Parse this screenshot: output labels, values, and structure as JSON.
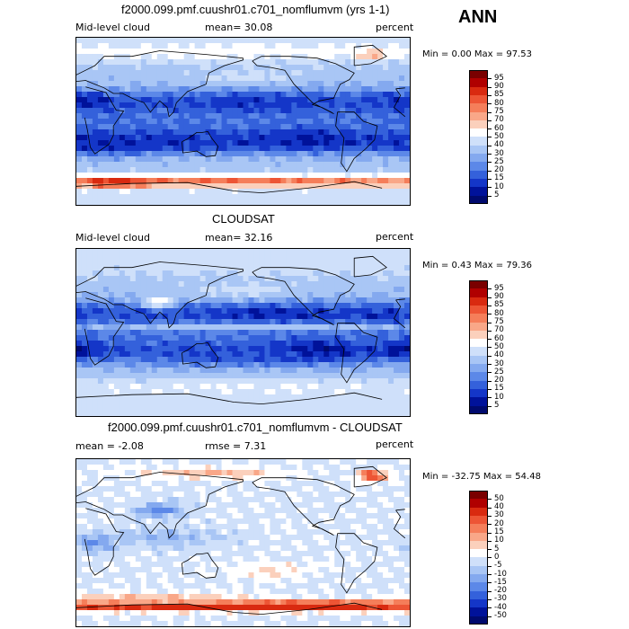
{
  "season": "ANN",
  "panels": [
    {
      "id": "model",
      "title": "f2000.099.pmf.cuushr01.c701_nomflumvm (yrs 1-1)",
      "left_label": "Mid-level cloud",
      "center_label": "mean=  30.08",
      "right_label": "percent",
      "minmax": "Min =    0.00 Max =   97.53",
      "colorbar_labels": [
        "95",
        "90",
        "85",
        "80",
        "75",
        "70",
        "60",
        "50",
        "40",
        "30",
        "25",
        "20",
        "15",
        "10",
        "5"
      ]
    },
    {
      "id": "obs",
      "title": "CLOUDSAT",
      "left_label": "Mid-level cloud",
      "center_label": "mean=  32.16",
      "right_label": "percent",
      "minmax": "Min =    0.43 Max =   79.36",
      "colorbar_labels": [
        "95",
        "90",
        "85",
        "80",
        "75",
        "70",
        "60",
        "50",
        "40",
        "30",
        "25",
        "20",
        "15",
        "10",
        "5"
      ]
    },
    {
      "id": "diff",
      "title": "f2000.099.pmf.cuushr01.c701_nomflumvm - CLOUDSAT",
      "left_label": "mean =  -2.08",
      "center_label": "rmse =   7.31",
      "right_label": "percent",
      "minmax": "Min = -32.75 Max =  54.48",
      "colorbar_labels": [
        "50",
        "40",
        "30",
        "20",
        "15",
        "10",
        "5",
        "0",
        "-5",
        "-10",
        "-15",
        "-20",
        "-30",
        "-40",
        "-50"
      ]
    }
  ],
  "colors": {
    "seq": [
      "#7a0000",
      "#b00000",
      "#d92a10",
      "#ed5535",
      "#f57e5a",
      "#f9a788",
      "#fbd0bc",
      "#ffffff",
      "#cfe0fa",
      "#a9c6f5",
      "#84a9ef",
      "#5c88e8",
      "#3461db",
      "#1436c8",
      "#00129a",
      "#000a6e"
    ],
    "coast": "#000000"
  },
  "chart_data": [
    {
      "type": "heatmap",
      "title": "f2000.099.pmf.cuushr01.c701_nomflumvm (yrs 1-1)",
      "subtitle": "Mid-level cloud",
      "units": "percent",
      "mean": 30.08,
      "min": 0.0,
      "max": 97.53,
      "contour_levels": [
        5,
        10,
        15,
        20,
        25,
        30,
        40,
        50,
        60,
        70,
        75,
        80,
        85,
        90,
        95
      ],
      "x_range": [
        0,
        360
      ],
      "y_range": [
        -90,
        90
      ],
      "fields": [
        {
          "desc": "southern ocean storm track band",
          "lat": -65,
          "lon": 180,
          "value": 80,
          "latw": 7,
          "lonw": 400
        },
        {
          "desc": "southern ocean west",
          "lat": -66,
          "lon": 40,
          "value": 90,
          "latw": 5,
          "lonw": 40
        },
        {
          "desc": "subtropical low clouds SE Pacific",
          "lat": -20,
          "lon": 250,
          "value": 5,
          "latw": 9,
          "lonw": 50
        },
        {
          "desc": "southern subtropics",
          "lat": -22,
          "lon": 150,
          "value": 12,
          "latw": 10,
          "lonw": 160
        },
        {
          "desc": "southern subtropics atlantic/indian",
          "lat": -25,
          "lon": 30,
          "value": 10,
          "latw": 10,
          "lonw": 60
        },
        {
          "desc": "north pacific subtropics",
          "lat": 20,
          "lon": 200,
          "value": 12,
          "latw": 9,
          "lonw": 60
        },
        {
          "desc": "north atlantic subtropics",
          "lat": 22,
          "lon": 330,
          "value": 15,
          "latw": 9,
          "lonw": 30
        },
        {
          "desc": "arctic",
          "lat": 75,
          "lon": 180,
          "value": 55,
          "latw": 8,
          "lonw": 400
        },
        {
          "desc": "north pacific storm track",
          "lat": 48,
          "lon": 180,
          "value": 45,
          "latw": 6,
          "lonw": 60
        },
        {
          "desc": "greenland high",
          "lat": 72,
          "lon": 320,
          "value": 80,
          "latw": 4,
          "lonw": 15
        },
        {
          "desc": "sahara",
          "lat": 22,
          "lon": 10,
          "value": 8,
          "latw": 8,
          "lonw": 25
        }
      ]
    },
    {
      "type": "heatmap",
      "title": "CLOUDSAT",
      "subtitle": "Mid-level cloud",
      "units": "percent",
      "mean": 32.16,
      "min": 0.43,
      "max": 79.36,
      "contour_levels": [
        5,
        10,
        15,
        20,
        25,
        30,
        40,
        50,
        60,
        70,
        75,
        80,
        85,
        90,
        95
      ],
      "x_range": [
        0,
        360
      ],
      "y_range": [
        -90,
        90
      ],
      "fields": [
        {
          "desc": "southern ocean",
          "lat": -60,
          "lon": 180,
          "value": 50,
          "latw": 10,
          "lonw": 400
        },
        {
          "desc": "SE pacific stratocumulus",
          "lat": -20,
          "lon": 255,
          "value": 3,
          "latw": 10,
          "lonw": 45
        },
        {
          "desc": "SE atlantic",
          "lat": -18,
          "lon": 355,
          "value": 5,
          "latw": 8,
          "lonw": 25
        },
        {
          "desc": "south pacific",
          "lat": -25,
          "lon": 180,
          "value": 15,
          "latw": 10,
          "lonw": 100
        },
        {
          "desc": "north pacific subtropics",
          "lat": 20,
          "lon": 210,
          "value": 10,
          "latw": 8,
          "lonw": 60
        },
        {
          "desc": "north atlantic subtropics",
          "lat": 20,
          "lon": 330,
          "value": 12,
          "latw": 8,
          "lonw": 30
        },
        {
          "desc": "arctic",
          "lat": 75,
          "lon": 180,
          "value": 45,
          "latw": 8,
          "lonw": 400
        },
        {
          "desc": "north pacific storm track",
          "lat": 45,
          "lon": 180,
          "value": 45,
          "latw": 7,
          "lonw": 60
        },
        {
          "desc": "tibet",
          "lat": 33,
          "lon": 88,
          "value": 60,
          "latw": 6,
          "lonw": 15
        },
        {
          "desc": "itcz",
          "lat": 6,
          "lon": 180,
          "value": 35,
          "latw": 4,
          "lonw": 200
        }
      ]
    },
    {
      "type": "heatmap",
      "title": "f2000.099.pmf.cuushr01.c701_nomflumvm - CLOUDSAT",
      "units": "percent",
      "mean": -2.08,
      "rmse": 7.31,
      "min": -32.75,
      "max": 54.48,
      "contour_levels": [
        -50,
        -40,
        -30,
        -20,
        -15,
        -10,
        -5,
        0,
        5,
        10,
        15,
        20,
        30,
        40,
        50
      ],
      "x_range": [
        0,
        360
      ],
      "y_range": [
        -90,
        90
      ],
      "fields": [
        {
          "desc": "antarctic coast positive",
          "lat": -68,
          "lon": 180,
          "value": 40,
          "latw": 5,
          "lonw": 400
        },
        {
          "desc": "southern ocean positive",
          "lat": -60,
          "lon": 90,
          "value": 10,
          "latw": 6,
          "lonw": 100
        },
        {
          "desc": "south pacific slight positive",
          "lat": -30,
          "lon": 210,
          "value": 6,
          "latw": 8,
          "lonw": 50
        },
        {
          "desc": "tropics negative",
          "lat": 5,
          "lon": 100,
          "value": -10,
          "latw": 10,
          "lonw": 60
        },
        {
          "desc": "africa negative",
          "lat": 0,
          "lon": 20,
          "value": -15,
          "latw": 10,
          "lonw": 20
        },
        {
          "desc": "asia negative",
          "lat": 35,
          "lon": 90,
          "value": -18,
          "latw": 8,
          "lonw": 25
        },
        {
          "desc": "greenland positive",
          "lat": 72,
          "lon": 320,
          "value": 30,
          "latw": 5,
          "lonw": 15
        },
        {
          "desc": "arctic positive",
          "lat": 75,
          "lon": 150,
          "value": 10,
          "latw": 6,
          "lonw": 80
        }
      ]
    }
  ]
}
